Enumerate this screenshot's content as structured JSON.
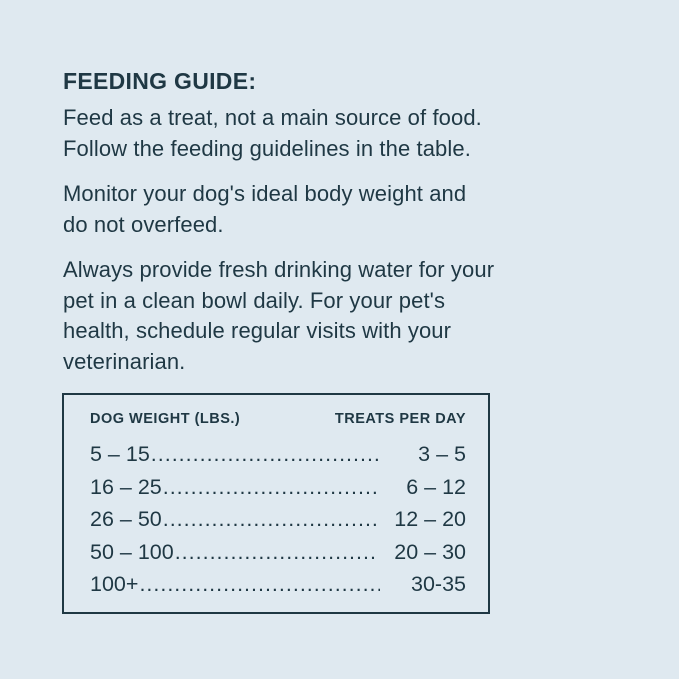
{
  "colors": {
    "background": "#dfe9f0",
    "text": "#1f3844"
  },
  "guide": {
    "heading": "FEEDING GUIDE:",
    "paragraphs": [
      {
        "lines": [
          "Feed as a treat, not a main source of food.",
          "Follow the feeding guidelines in the table."
        ]
      },
      {
        "lines": [
          "Monitor your dog's ideal body weight and",
          "do not overfeed."
        ]
      },
      {
        "lines": [
          "Always provide fresh drinking water for your",
          "pet in a clean bowl daily. For your pet's",
          "health, schedule regular visits with your",
          "veterinarian."
        ]
      }
    ]
  },
  "table": {
    "col_weight_header": "DOG WEIGHT (LBS.)",
    "col_treats_header": "TREATS PER DAY",
    "leader_dots": "........................................................................................",
    "rows": [
      {
        "weight": "5 – 15",
        "treats": "3 – 5"
      },
      {
        "weight": "16 – 25",
        "treats": "6 – 12"
      },
      {
        "weight": "26 – 50",
        "treats": "12 – 20"
      },
      {
        "weight": "50 – 100",
        "treats": "20 – 30"
      },
      {
        "weight": "100+",
        "treats": "30-35"
      }
    ]
  }
}
